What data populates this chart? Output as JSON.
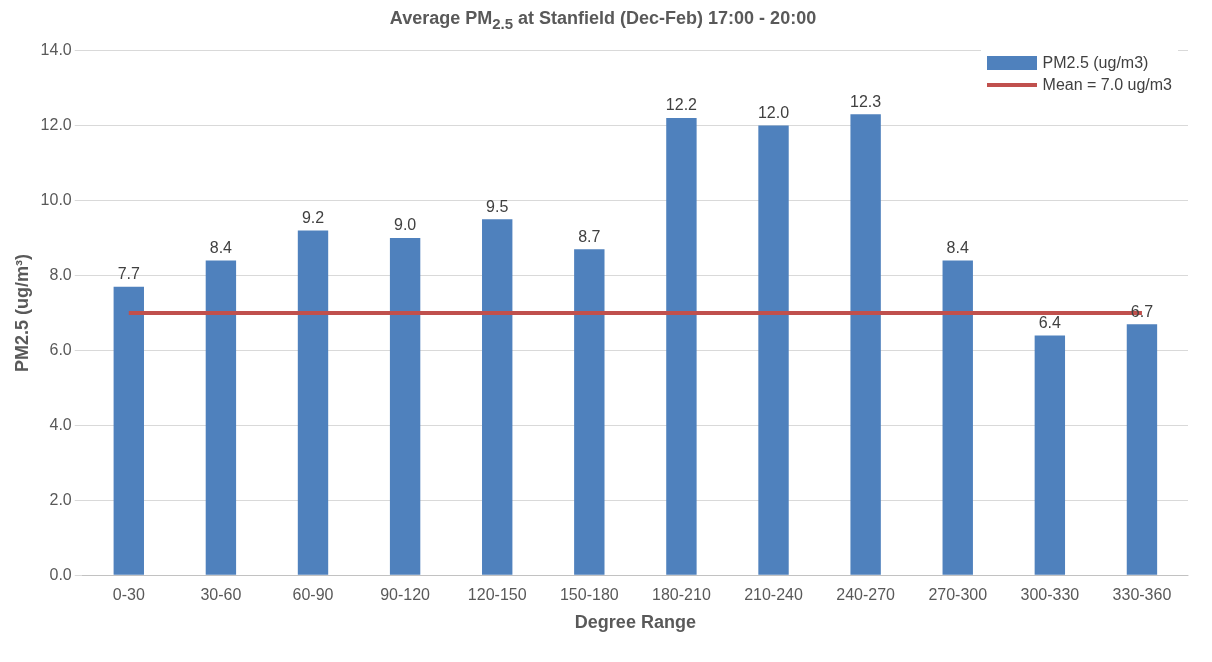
{
  "chart_data": {
    "type": "bar",
    "title": "Average PM$_{2.5}$ at Stanfield (Dec-Feb) 17:00 - 20:00",
    "xlabel": "Degree Range",
    "ylabel": "PM2.5 (ug/m³)",
    "categories": [
      "0-30",
      "30-60",
      "60-90",
      "90-120",
      "120-150",
      "150-180",
      "180-210",
      "210-240",
      "240-270",
      "270-300",
      "300-330",
      "330-360"
    ],
    "series": [
      {
        "name": "PM2.5 (ug/m3)",
        "color": "#4f81bd",
        "values": [
          7.7,
          8.4,
          9.2,
          9.0,
          9.5,
          8.7,
          12.2,
          12.0,
          12.3,
          8.4,
          6.4,
          6.7
        ],
        "value_labels": [
          "7.7",
          "8.4",
          "9.2",
          "9.0",
          "9.5",
          "8.7",
          "12.2",
          "12.0",
          "12.3",
          "8.4",
          "6.4",
          "6.7"
        ]
      },
      {
        "name": "Mean = 7.0 ug/m3",
        "type": "line",
        "color": "#c0504d",
        "values": [
          7.0,
          7.0,
          7.0,
          7.0,
          7.0,
          7.0,
          7.0,
          7.0,
          7.0,
          7.0,
          7.0,
          7.0
        ]
      }
    ],
    "ylim": [
      0,
      14
    ],
    "yticks": [
      {
        "value": 0,
        "label": "0.0"
      },
      {
        "value": 2,
        "label": "2.0"
      },
      {
        "value": 4,
        "label": "4.0"
      },
      {
        "value": 6,
        "label": "6.0"
      },
      {
        "value": 8,
        "label": "8.0"
      },
      {
        "value": 10,
        "label": "10.0"
      },
      {
        "value": 12,
        "label": "12.0"
      },
      {
        "value": 14,
        "label": "14.0"
      }
    ],
    "grid": "y",
    "legend": "top right",
    "marker": "none"
  }
}
